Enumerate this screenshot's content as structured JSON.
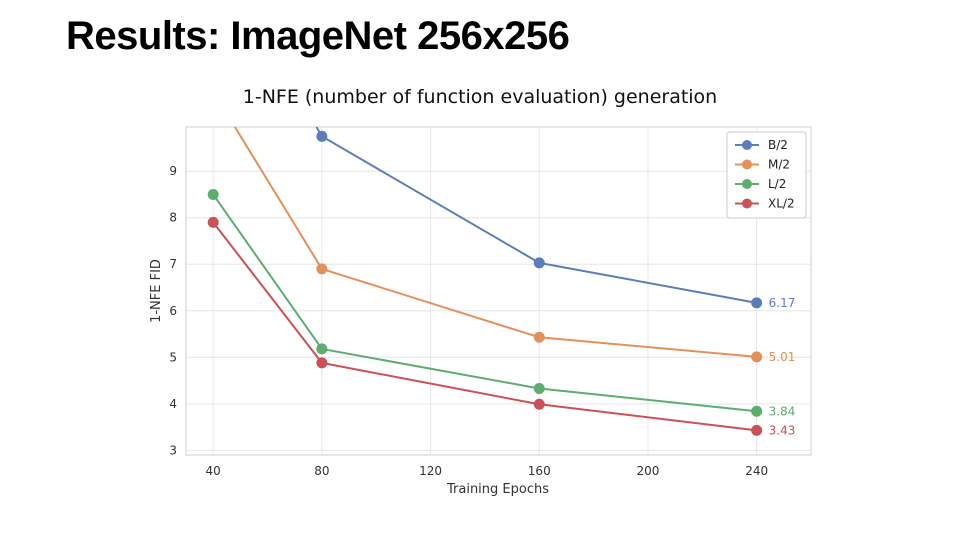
{
  "slide": {
    "title": "Results: ImageNet 256x256"
  },
  "chart_data": {
    "type": "line",
    "title": "1-NFE (number of function evaluation) generation",
    "xlabel": "Training Epochs",
    "ylabel": "1-NFE FID",
    "x_ticks": [
      40,
      80,
      120,
      160,
      200,
      240
    ],
    "y_ticks": [
      3,
      4,
      5,
      6,
      7,
      8,
      9
    ],
    "xlim": [
      30,
      260
    ],
    "ylim": [
      2.9,
      9.95
    ],
    "grid": true,
    "legend_position": "top-right",
    "series": [
      {
        "name": "B/2",
        "color": "#5a7dbb",
        "x": [
          80,
          160,
          240
        ],
        "y": [
          9.75,
          7.03,
          6.17
        ],
        "leading_segment": {
          "x": 78,
          "y": 9.95
        },
        "end_label": "6.17"
      },
      {
        "name": "M/2",
        "color": "#e3915a",
        "x": [
          80,
          160,
          240
        ],
        "y": [
          6.9,
          5.43,
          5.01
        ],
        "leading_segment": {
          "x": 48,
          "y": 9.95
        },
        "end_label": "5.01"
      },
      {
        "name": "L/2",
        "color": "#5dad6e",
        "x": [
          40,
          80,
          160,
          240
        ],
        "y": [
          8.5,
          5.18,
          4.33,
          3.84
        ],
        "end_label": "3.84"
      },
      {
        "name": "XL/2",
        "color": "#c95157",
        "x": [
          40,
          80,
          160,
          240
        ],
        "y": [
          7.9,
          4.88,
          3.99,
          3.43
        ],
        "end_label": "3.43"
      }
    ]
  }
}
